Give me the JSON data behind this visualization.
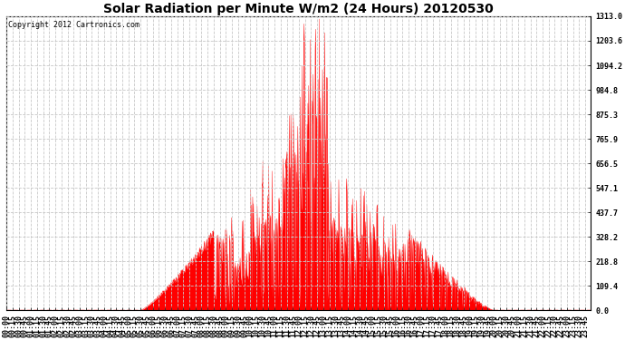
{
  "title": "Solar Radiation per Minute W/m2 (24 Hours) 20120530",
  "copyright": "Copyright 2012 Cartronics.com",
  "bg_color": "#ffffff",
  "plot_bg_color": "#ffffff",
  "fill_color": "#ff0000",
  "line_color": "#ff0000",
  "grid_color": "#c8c8c8",
  "ymin": 0.0,
  "ymax": 1313.0,
  "yticks": [
    0.0,
    109.4,
    218.8,
    328.2,
    437.7,
    547.1,
    656.5,
    765.9,
    875.3,
    984.8,
    1094.2,
    1203.6,
    1313.0
  ],
  "figsize": [
    6.9,
    3.75
  ],
  "dpi": 100,
  "xtick_step": 15,
  "title_fontsize": 10,
  "tick_fontsize": 6,
  "copyright_fontsize": 6
}
